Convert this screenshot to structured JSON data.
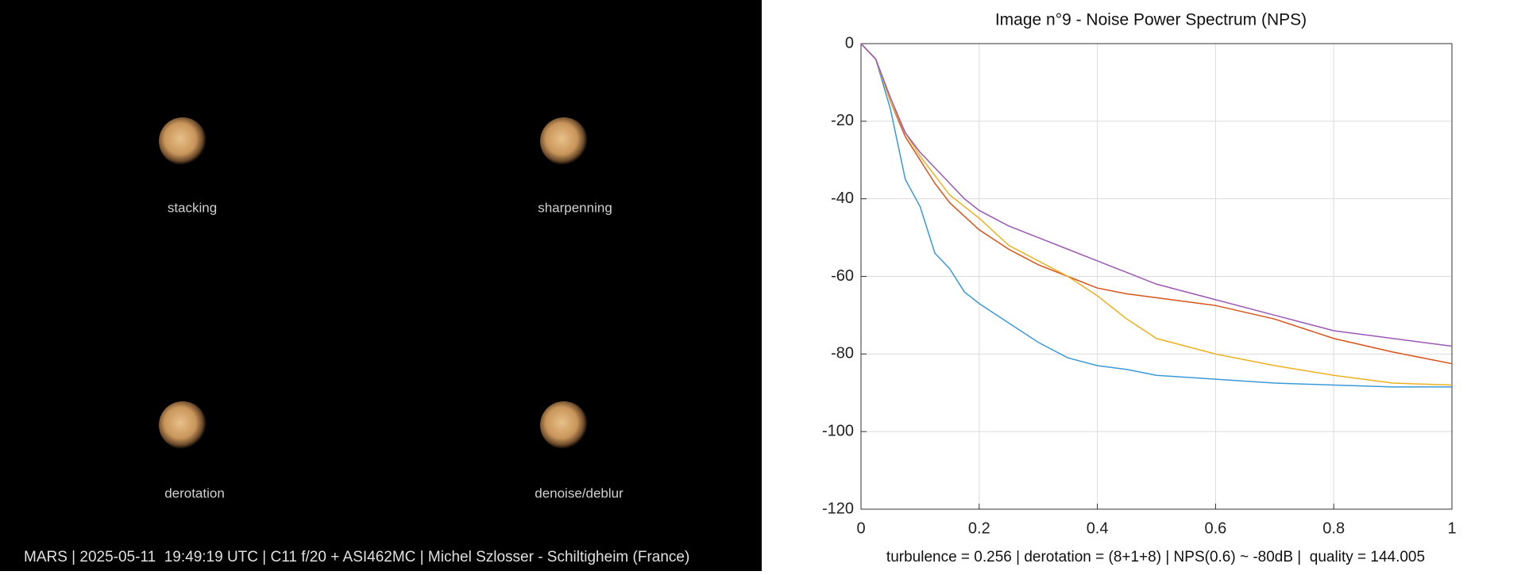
{
  "panels": [
    {
      "label": "stacking"
    },
    {
      "label": "sharpenning"
    },
    {
      "label": "derotation"
    },
    {
      "label": "denoise/deblur"
    }
  ],
  "caption": "MARS | 2025-05-11  19:49:19 UTC | C11 f/20 + ASI462MC | Michel Szlosser - Schiltigheim (France)",
  "chart_data": {
    "type": "line",
    "title": "Image n°9 - Noise Power Spectrum (NPS)",
    "footnote": "turbulence = 0.256 | derotation = (8+1+8) | NPS(0.6) ~ -80dB |  quality = 144.005",
    "x": [
      0,
      0.025,
      0.05,
      0.075,
      0.1,
      0.125,
      0.15,
      0.175,
      0.2,
      0.25,
      0.3,
      0.35,
      0.4,
      0.45,
      0.5,
      0.6,
      0.7,
      0.8,
      0.9,
      1
    ],
    "series": [
      {
        "color": "#3a9ad9",
        "values": [
          0,
          -4,
          -17,
          -35,
          -42,
          -54,
          -58,
          -64,
          -67,
          -72,
          -77,
          -81,
          -83,
          -84,
          -85.5,
          -86.5,
          -87.5,
          -88,
          -88.5,
          -88.5
        ]
      },
      {
        "color": "#d95319",
        "values": [
          0,
          -4,
          -15,
          -24,
          -30,
          -36,
          -41,
          -44.5,
          -48,
          -53,
          -57,
          -60,
          -63,
          -64.5,
          -65.5,
          -67.5,
          -71,
          -76,
          -79.5,
          -82.5
        ]
      },
      {
        "color": "#edb120",
        "values": [
          0,
          -4,
          -15,
          -23,
          -29,
          -34,
          -39,
          -42,
          -45,
          -52,
          -56,
          -60,
          -65,
          -71,
          -76,
          -80,
          -83,
          -85.5,
          -87.5,
          -88
        ]
      },
      {
        "color": "#9b59b6",
        "values": [
          0,
          -4,
          -14,
          -23,
          -28,
          -32,
          -36,
          -40,
          -43,
          -47,
          -50,
          -53,
          -56,
          -59,
          -62,
          -66,
          -70,
          -74,
          -76,
          -78
        ]
      }
    ],
    "xlim": [
      0,
      1
    ],
    "xticks": [
      0,
      0.2,
      0.4,
      0.6,
      0.8,
      1
    ],
    "ylim": [
      -120,
      0
    ],
    "yticks": [
      -120,
      -100,
      -80,
      -60,
      -40,
      -20,
      0
    ],
    "grid": true
  }
}
